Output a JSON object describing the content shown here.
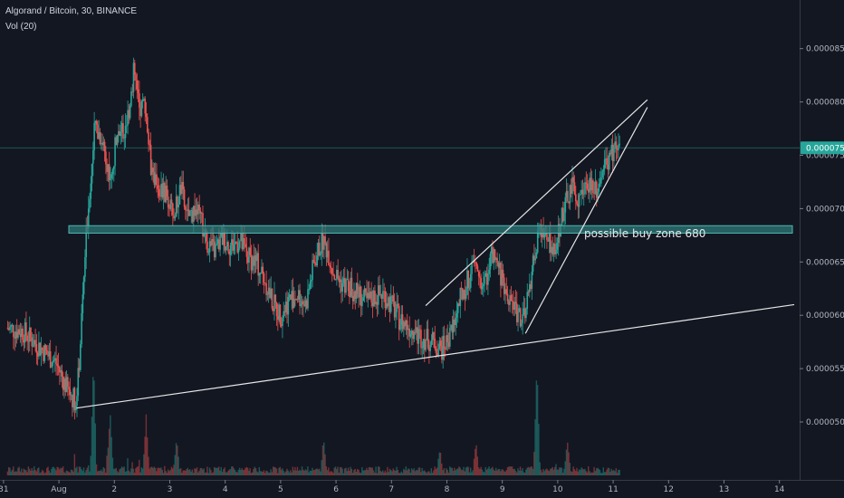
{
  "header": {
    "symbol_line": "Algorand / Bitcoin, 30, BINANCE",
    "volume_line": "Vol (20)"
  },
  "chart_data": {
    "type": "candlestick",
    "title": "Algorand / Bitcoin, 30, BINANCE",
    "indicator": "Vol (20)",
    "x_tick_labels": [
      "31",
      "Aug",
      "2",
      "3",
      "4",
      "5",
      "6",
      "7",
      "8",
      "9",
      "10",
      "11",
      "12",
      "13",
      "14"
    ],
    "y_tick_labels": [
      "0.0000500",
      "0.0000550",
      "0.0000600",
      "0.0000650",
      "0.0000700",
      "0.0000750",
      "0.0000800",
      "0.0000850"
    ],
    "y_ticks": [
      5e-05,
      5.5e-05,
      6e-05,
      6.5e-05,
      7e-05,
      7.5e-05,
      8e-05,
      8.5e-05
    ],
    "last_price": 7.57e-05,
    "last_price_label": "0.0000757",
    "annotation": "possible buy zone 680",
    "buy_zone": [
      6.77e-05,
      6.84e-05
    ],
    "price_path": [
      [
        0.0,
        5.88e-05
      ],
      [
        0.3,
        5.85e-05
      ],
      [
        0.6,
        5.7e-05
      ],
      [
        0.9,
        5.55e-05
      ],
      [
        1.1,
        5.3e-05
      ],
      [
        1.25,
        5.2e-05
      ],
      [
        1.3,
        5.45e-05
      ],
      [
        1.45,
        6.85e-05
      ],
      [
        1.6,
        7.8e-05
      ],
      [
        1.75,
        7.6e-05
      ],
      [
        1.9,
        7.25e-05
      ],
      [
        2.0,
        7.8e-05
      ],
      [
        2.15,
        7.7e-05
      ],
      [
        2.3,
        8.3e-05
      ],
      [
        2.4,
        7.9e-05
      ],
      [
        2.5,
        8e-05
      ],
      [
        2.6,
        7.4e-05
      ],
      [
        2.75,
        7.2e-05
      ],
      [
        2.9,
        7.1e-05
      ],
      [
        3.0,
        6.9e-05
      ],
      [
        3.15,
        7.2e-05
      ],
      [
        3.25,
        6.9e-05
      ],
      [
        3.4,
        7e-05
      ],
      [
        3.5,
        6.9e-05
      ],
      [
        3.6,
        6.7e-05
      ],
      [
        3.75,
        6.6e-05
      ],
      [
        3.9,
        6.72e-05
      ],
      [
        4.05,
        6.65e-05
      ],
      [
        4.2,
        6.7e-05
      ],
      [
        4.35,
        6.55e-05
      ],
      [
        4.5,
        6.5e-05
      ],
      [
        4.65,
        6.35e-05
      ],
      [
        4.8,
        6.12e-05
      ],
      [
        4.95,
        6e-05
      ],
      [
        5.1,
        6.15e-05
      ],
      [
        5.25,
        6.2e-05
      ],
      [
        5.4,
        6.1e-05
      ],
      [
        5.55,
        6.5e-05
      ],
      [
        5.7,
        6.7e-05
      ],
      [
        5.8,
        6.6e-05
      ],
      [
        5.9,
        6.4e-05
      ],
      [
        6.05,
        6.3e-05
      ],
      [
        6.2,
        6.25e-05
      ],
      [
        6.35,
        6.2e-05
      ],
      [
        6.5,
        6.12e-05
      ],
      [
        6.65,
        6.18e-05
      ],
      [
        6.8,
        6.2e-05
      ],
      [
        6.95,
        6.1e-05
      ],
      [
        7.1,
        5.95e-05
      ],
      [
        7.25,
        5.9e-05
      ],
      [
        7.4,
        5.82e-05
      ],
      [
        7.55,
        5.78e-05
      ],
      [
        7.7,
        5.75e-05
      ],
      [
        7.85,
        5.68e-05
      ],
      [
        8.0,
        5.8e-05
      ],
      [
        8.15,
        6.1e-05
      ],
      [
        8.3,
        6.3e-05
      ],
      [
        8.45,
        6.48e-05
      ],
      [
        8.6,
        6.25e-05
      ],
      [
        8.75,
        6.55e-05
      ],
      [
        8.9,
        6.4e-05
      ],
      [
        9.05,
        6.2e-05
      ],
      [
        9.2,
        6.05e-05
      ],
      [
        9.35,
        5.95e-05
      ],
      [
        9.5,
        6.5e-05
      ],
      [
        9.6,
        6.75e-05
      ],
      [
        9.75,
        6.7e-05
      ],
      [
        9.9,
        6.65e-05
      ],
      [
        10.05,
        7e-05
      ],
      [
        10.2,
        7.2e-05
      ],
      [
        10.35,
        7.1e-05
      ],
      [
        10.5,
        7.25e-05
      ],
      [
        10.65,
        7.2e-05
      ],
      [
        10.8,
        7.4e-05
      ],
      [
        10.95,
        7.55e-05
      ],
      [
        11.05,
        7.57e-05
      ]
    ],
    "volume_spikes": [
      [
        1.55,
        1.0
      ],
      [
        1.85,
        0.55
      ],
      [
        2.5,
        0.5
      ],
      [
        3.05,
        0.3
      ],
      [
        5.7,
        0.3
      ],
      [
        7.8,
        0.2
      ],
      [
        8.45,
        0.25
      ],
      [
        9.55,
        0.95
      ],
      [
        10.1,
        0.3
      ]
    ],
    "trendlines": [
      {
        "from": [
          1.25,
          5.13e-05
        ],
        "to": [
          14.2,
          6.1e-05
        ]
      },
      {
        "from": [
          7.55,
          6.09e-05
        ],
        "to": [
          11.55,
          8.02e-05
        ]
      },
      {
        "from": [
          9.35,
          5.83e-05
        ],
        "to": [
          11.55,
          7.95e-05
        ]
      }
    ],
    "colors": {
      "background": "#131722",
      "bullish": "#26a69a",
      "bearish": "#ef5350",
      "zone_fill": "#2e7a78",
      "zone_border": "#4fb5b2",
      "last_price_line": "#26a69a",
      "trendline": "#e6e6e6",
      "axis_text": "#b2b5be"
    },
    "grid": false,
    "legend": "top-left"
  }
}
